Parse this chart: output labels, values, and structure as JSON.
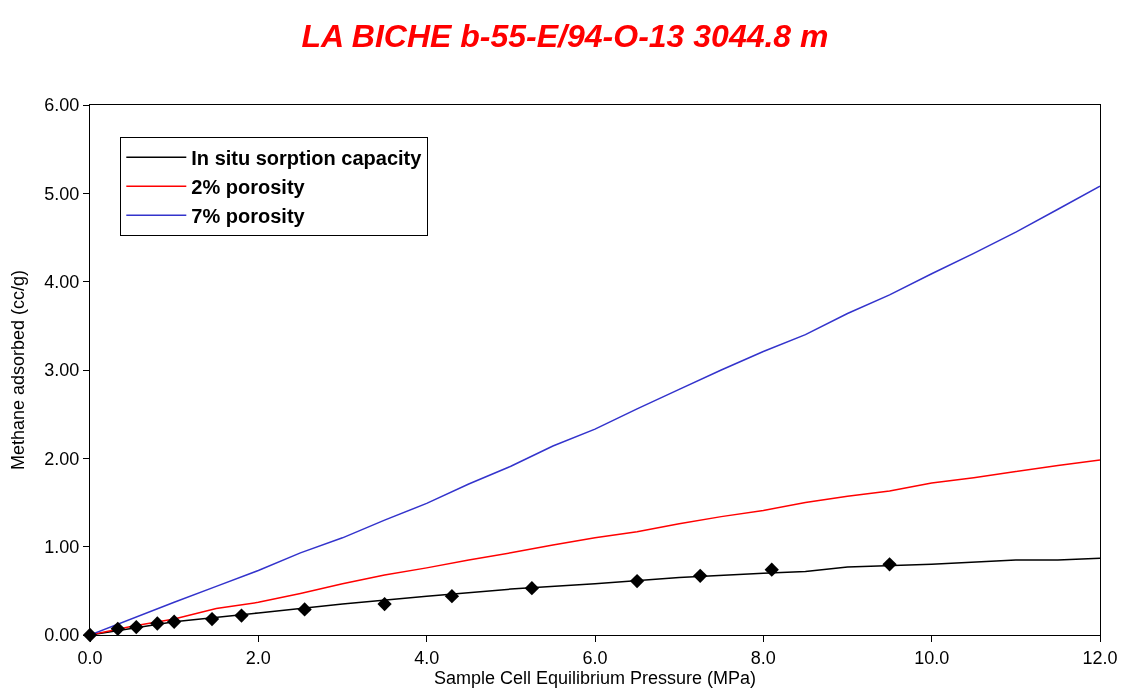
{
  "chart_data": {
    "type": "line",
    "title": "LA BICHE b-55-E/94-O-13 3044.8 m",
    "xlabel": "Sample Cell Equilibrium Pressure (MPa)",
    "ylabel": "Methane adsorbed (cc/g)",
    "series": [
      {
        "name": "In situ sorption capacity",
        "color": "#000000",
        "x": [
          0,
          1,
          2,
          3,
          4,
          5,
          6,
          7,
          8,
          8.5,
          9,
          10,
          11,
          11.5,
          12
        ],
        "values": [
          0,
          0.15,
          0.25,
          0.35,
          0.44,
          0.52,
          0.58,
          0.65,
          0.7,
          0.72,
          0.77,
          0.8,
          0.85,
          0.85,
          0.87
        ]
      },
      {
        "name": "2% porosity",
        "color": "#ff0000",
        "x": [
          0,
          0.5,
          1,
          1.5,
          2,
          2.5,
          3,
          3.5,
          4,
          4.5,
          5,
          5.5,
          6,
          6.5,
          7,
          7.5,
          8,
          8.5,
          9,
          9.5,
          10,
          10.5,
          11,
          11.5,
          12
        ],
        "values": [
          0,
          0.1,
          0.18,
          0.3,
          0.37,
          0.47,
          0.58,
          0.68,
          0.76,
          0.85,
          0.93,
          1.02,
          1.1,
          1.17,
          1.26,
          1.34,
          1.41,
          1.5,
          1.57,
          1.63,
          1.72,
          1.78,
          1.85,
          1.92,
          1.98
        ]
      },
      {
        "name": "7% porosity",
        "color": "#3333cc",
        "x": [
          0,
          1,
          1.5,
          2,
          2.5,
          3,
          3.5,
          4,
          4.5,
          5,
          5.5,
          6,
          6.5,
          7,
          7.5,
          8,
          8.5,
          9,
          9.5,
          10,
          10.5,
          11,
          11.5,
          12
        ],
        "values": [
          0,
          0.37,
          0.55,
          0.73,
          0.93,
          1.1,
          1.3,
          1.49,
          1.71,
          1.91,
          2.14,
          2.33,
          2.56,
          2.78,
          3.0,
          3.21,
          3.4,
          3.64,
          3.85,
          4.09,
          4.32,
          4.56,
          4.82,
          5.08
        ]
      },
      {
        "type": "scatter",
        "marker": "diamond",
        "color": "#000000",
        "x": [
          0,
          0.33,
          0.55,
          0.8,
          1.0,
          1.45,
          1.8,
          2.55,
          3.5,
          4.3,
          5.25,
          6.5,
          7.25,
          8.1,
          9.5
        ],
        "values": [
          0,
          0.07,
          0.09,
          0.13,
          0.15,
          0.18,
          0.22,
          0.29,
          0.35,
          0.44,
          0.53,
          0.61,
          0.67,
          0.74,
          0.8
        ]
      }
    ],
    "xlim": [
      0,
      12
    ],
    "ylim": [
      0,
      6
    ],
    "xticks": [
      {
        "value": 0,
        "label": "0.0"
      },
      {
        "value": 2,
        "label": "2.0"
      },
      {
        "value": 4,
        "label": "4.0"
      },
      {
        "value": 6,
        "label": "6.0"
      },
      {
        "value": 8,
        "label": "8.0"
      },
      {
        "value": 10,
        "label": "10.0"
      },
      {
        "value": 12,
        "label": "12.0"
      }
    ],
    "yticks": [
      {
        "value": 0,
        "label": "0.00"
      },
      {
        "value": 1,
        "label": "1.00"
      },
      {
        "value": 2,
        "label": "2.00"
      },
      {
        "value": 3,
        "label": "3.00"
      },
      {
        "value": 4,
        "label": "4.00"
      },
      {
        "value": 5,
        "label": "5.00"
      },
      {
        "value": 6,
        "label": "6.00"
      }
    ],
    "legend": "top left",
    "marker": "none",
    "line_style": "solid"
  }
}
